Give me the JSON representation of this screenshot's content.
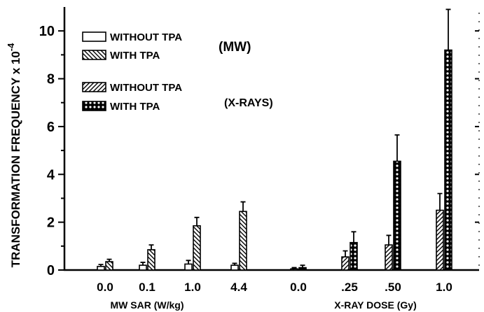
{
  "chart_data": {
    "type": "bar",
    "ylabel": "TRANSFORMATION FREQUENCY x 10",
    "ylabel_exponent": "-4",
    "ylim": [
      0,
      11
    ],
    "yticks": [
      0,
      2,
      4,
      6,
      8,
      10
    ],
    "grid": false,
    "legend_position": "top-left",
    "legend": [
      {
        "label": "WITHOUT TPA",
        "pattern": "open"
      },
      {
        "label": "WITH TPA",
        "pattern": "back-hatch"
      },
      {
        "label": "WITHOUT TPA",
        "pattern": "forward-hatch"
      },
      {
        "label": "WITH TPA",
        "pattern": "crosshatch"
      }
    ],
    "legend_group_labels": [
      "(MW)",
      "(X-RAYS)"
    ],
    "groups": [
      {
        "name": "MW",
        "xlabel": "MW  SAR (W/kg)",
        "categories": [
          "0.0",
          "0.1",
          "1.0",
          "4.4"
        ],
        "series": [
          {
            "pattern": "open",
            "values": [
              0.15,
              0.2,
              0.25,
              0.2
            ],
            "errors": [
              0.08,
              0.12,
              0.15,
              0.08
            ]
          },
          {
            "pattern": "back-hatch",
            "values": [
              0.35,
              0.85,
              1.85,
              2.45
            ],
            "errors": [
              0.1,
              0.2,
              0.35,
              0.4
            ]
          }
        ]
      },
      {
        "name": "X-RAYS",
        "xlabel": "X-RAY DOSE (Gy)",
        "categories": [
          "0.0",
          ".25",
          ".50",
          "1.0"
        ],
        "series": [
          {
            "pattern": "forward-hatch",
            "values": [
              0.05,
              0.55,
              1.05,
              2.5
            ],
            "errors": [
              0.05,
              0.25,
              0.4,
              0.7
            ]
          },
          {
            "pattern": "crosshatch",
            "values": [
              0.1,
              1.15,
              4.55,
              9.2
            ],
            "errors": [
              0.1,
              0.45,
              1.1,
              1.7
            ]
          }
        ]
      }
    ]
  }
}
